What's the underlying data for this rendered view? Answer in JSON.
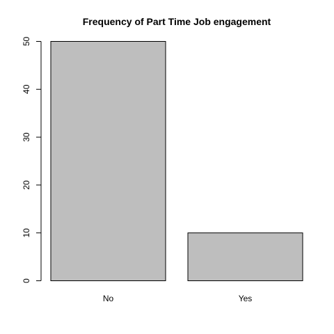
{
  "chart_data": {
    "type": "bar",
    "title": "Frequency of Part Time Job engagement",
    "categories": [
      "No",
      "Yes"
    ],
    "values": [
      50,
      10
    ],
    "xlabel": "",
    "ylabel": "",
    "ylim": [
      0,
      50
    ],
    "y_ticks": [
      0,
      10,
      20,
      30,
      40,
      50
    ],
    "bar_fill": "#bebebe",
    "bar_stroke": "#000000",
    "grid": false,
    "legend": "none"
  }
}
